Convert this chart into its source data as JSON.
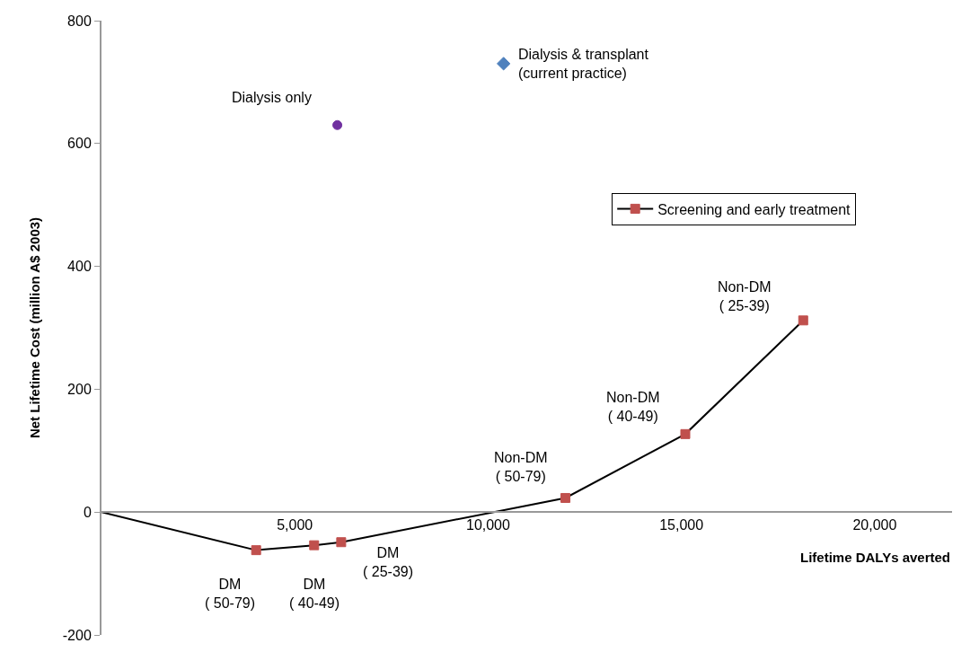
{
  "chart_data": {
    "type": "line",
    "xlabel": "Lifetime DALYs averted",
    "ylabel": "Net Lifetime Cost (million A$ 2003)",
    "xlim": [
      0,
      22000
    ],
    "xticks": [
      {
        "value": 5000,
        "label": "5,000"
      },
      {
        "value": 10000,
        "label": "10,000"
      },
      {
        "value": 15000,
        "label": "15,000"
      },
      {
        "value": 20000,
        "label": "20,000"
      }
    ],
    "ylim": [
      -200,
      800
    ],
    "yticks": [
      -200,
      0,
      200,
      400,
      600,
      800
    ],
    "legend": "right",
    "series": [
      {
        "color": "#000000",
        "marker": "none",
        "x": [
          0,
          4000
        ],
        "values": [
          0,
          -62
        ]
      },
      {
        "name": "Screening and early treatment",
        "color": "#c0504d",
        "marker": "square",
        "x": [
          4000,
          5500,
          6200,
          12000,
          15100,
          18150
        ],
        "values": [
          -62,
          -54,
          -49,
          23,
          127,
          312
        ]
      },
      {
        "type": "scatter",
        "color": "#7030a0",
        "marker": "circle",
        "x": [
          6100
        ],
        "values": [
          630
        ]
      },
      {
        "type": "scatter",
        "color": "#4f81bd",
        "marker": "diamond",
        "x": [
          10400
        ],
        "values": [
          730
        ]
      }
    ],
    "annotations": [
      {
        "text": "Dialysis only",
        "x": 6100,
        "y": 630
      },
      {
        "text": "Dialysis & transplant\n(current practice)",
        "x": 10400,
        "y": 730
      },
      {
        "text": "DM\n( 50-79)",
        "x": 4000,
        "y": -62
      },
      {
        "text": "DM\n( 40-49)",
        "x": 5500,
        "y": -54
      },
      {
        "text": "DM\n( 25-39)",
        "x": 6200,
        "y": -49
      },
      {
        "text": "Non-DM\n( 50-79)",
        "x": 12000,
        "y": 23
      },
      {
        "text": "Non-DM\n( 40-49)",
        "x": 15100,
        "y": 127
      },
      {
        "text": "Non-DM\n( 25-39)",
        "x": 18150,
        "y": 312
      }
    ]
  }
}
